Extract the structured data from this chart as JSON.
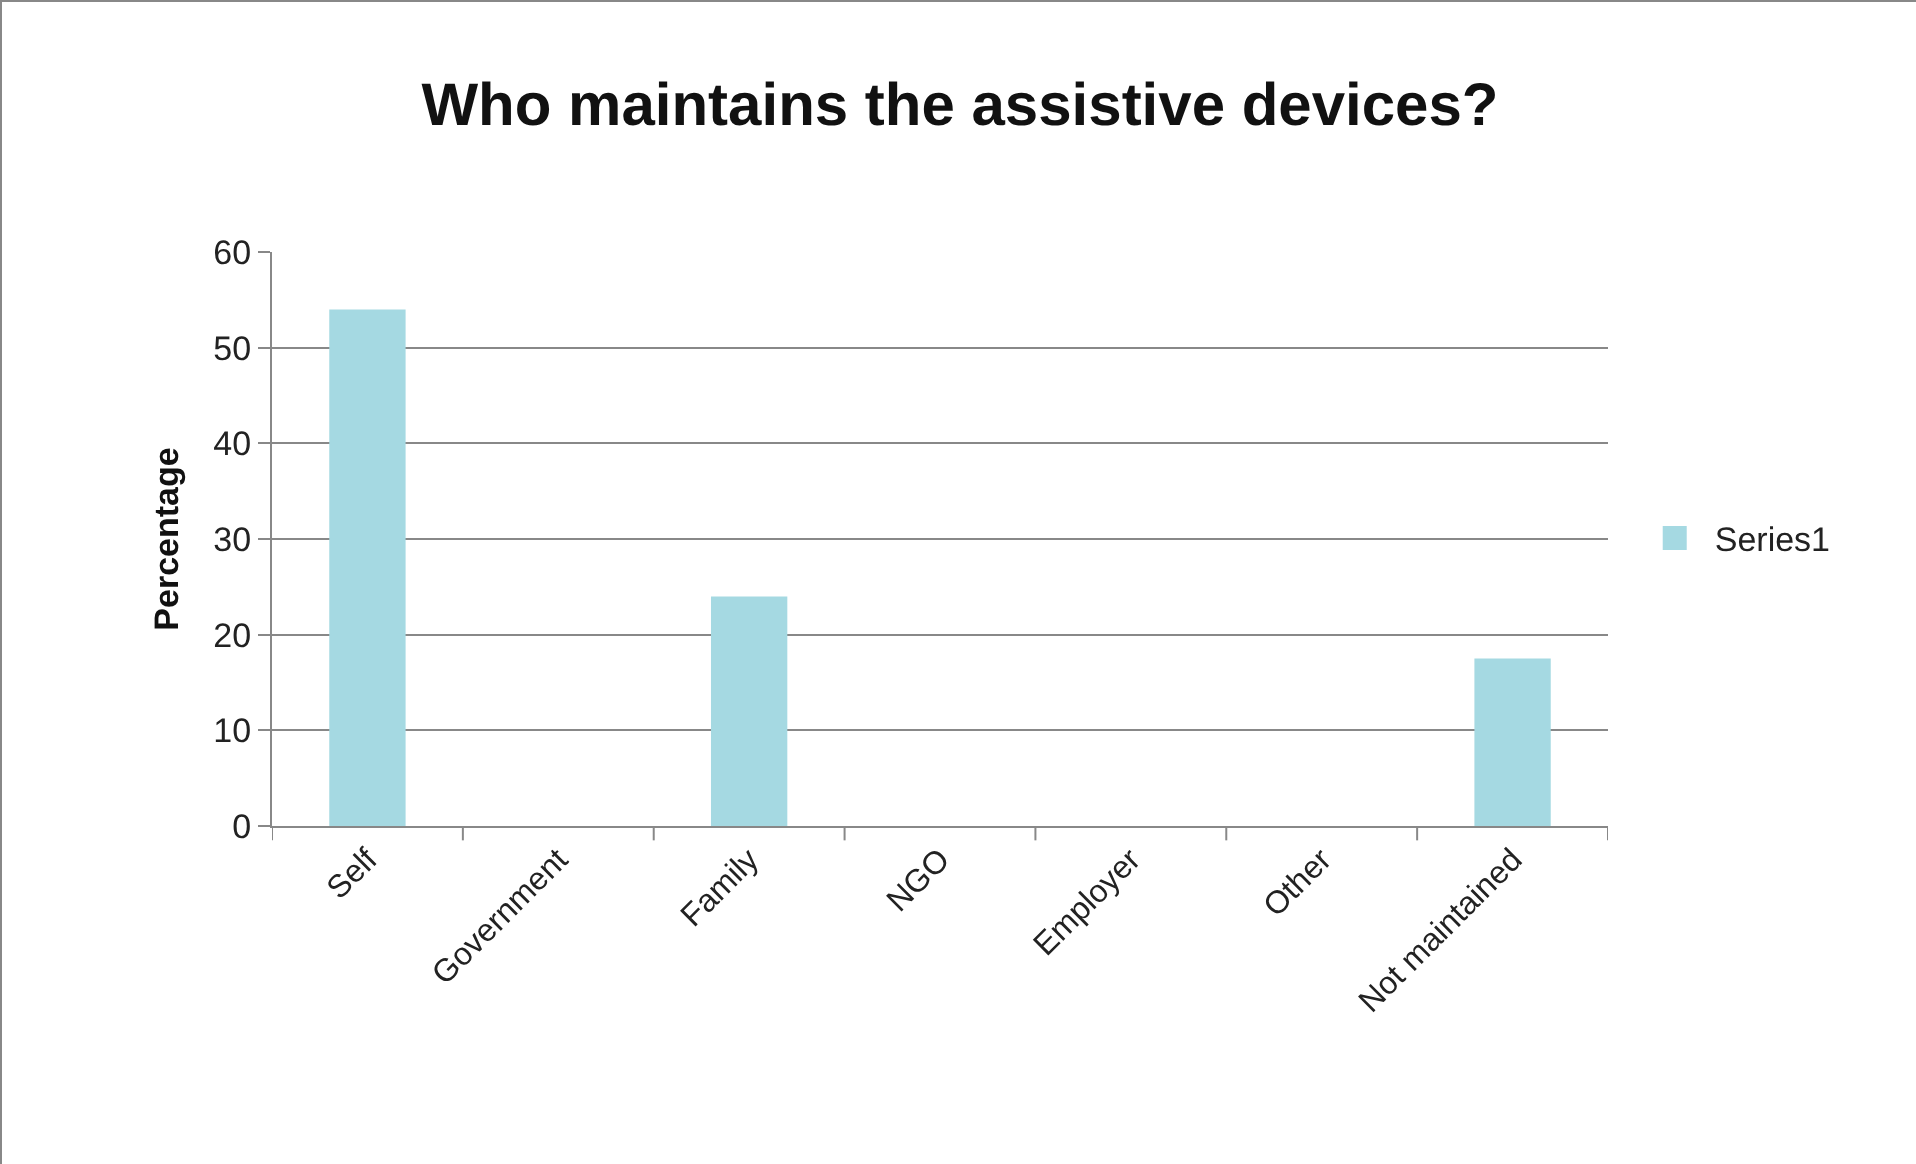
{
  "chart_data": {
    "type": "bar",
    "title": "Who maintains the assistive devices?",
    "ylabel": "Percentage",
    "categories": [
      "Self",
      "Government",
      "Family",
      "NGO",
      "Employer",
      "Other",
      "Not maintained"
    ],
    "series": [
      {
        "name": "Series1",
        "color": "#a5d9e2",
        "values": [
          54,
          0,
          24,
          0,
          0,
          0,
          17.5
        ]
      }
    ],
    "ylim": [
      0,
      60
    ],
    "yticks": [
      0,
      10,
      20,
      30,
      40,
      50,
      60
    ],
    "grid": "y",
    "legend": "right"
  }
}
